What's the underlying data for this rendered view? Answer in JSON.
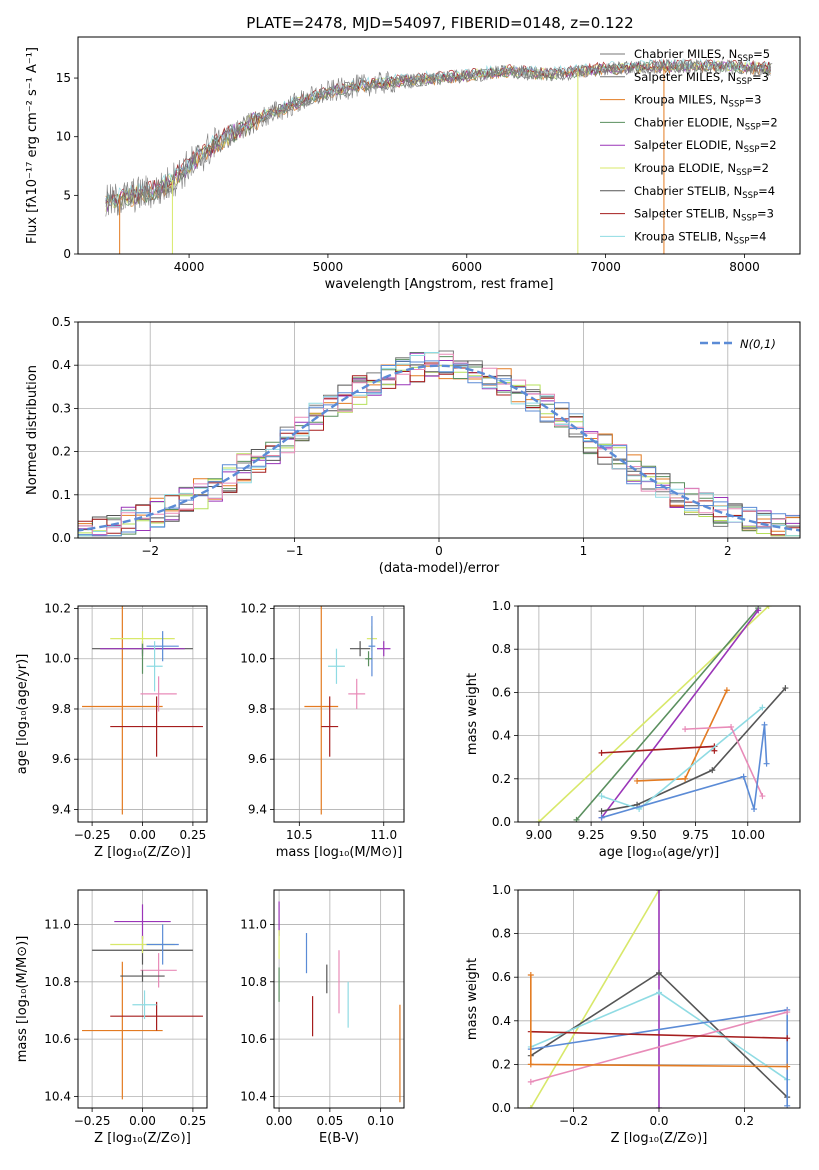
{
  "figure_title": "PLATE=2478, MJD=54097, FIBERID=0148, z=0.122",
  "chart_data": [
    {
      "id": "spectrum",
      "type": "line",
      "xlabel": "wavelength [Angstrom, rest frame]",
      "ylabel": "Flux [fλ10⁻¹⁷ erg cm⁻² s⁻¹ A⁻¹]",
      "xlim": [
        3200,
        8400
      ],
      "ylim": [
        0,
        18.5
      ],
      "xticks": [
        4000,
        5000,
        6000,
        7000,
        8000
      ],
      "yticks": [
        0,
        5,
        10,
        15
      ],
      "grid": false,
      "legend_position": "top-right",
      "legend": [
        {
          "name": "Chabrier MILES, N_SSP=5",
          "color": "#777777"
        },
        {
          "name": "Salpeter MILES, N_SSP=3",
          "color": "#777777"
        },
        {
          "name": "Kroupa MILES, N_SSP=3",
          "color": "#e37b22"
        },
        {
          "name": "Chabrier ELODIE, N_SSP=2",
          "color": "#5a8f5e"
        },
        {
          "name": "Salpeter ELODIE, N_SSP=2",
          "color": "#9a35b8"
        },
        {
          "name": "Kroupa ELODIE, N_SSP=2",
          "color": "#d8e86a"
        },
        {
          "name": "Chabrier STELIB, N_SSP=4",
          "color": "#555555"
        },
        {
          "name": "Salpeter STELIB, N_SSP=3",
          "color": "#a51d1d"
        },
        {
          "name": "Kroupa STELIB, N_SSP=4",
          "color": "#8fdbe3"
        }
      ],
      "continuum": {
        "x": [
          3400,
          3600,
          3800,
          4000,
          4200,
          4500,
          4800,
          5000,
          5200,
          5500,
          5800,
          6000,
          6300,
          6600,
          7000,
          7400,
          7800,
          8200
        ],
        "y": [
          4.3,
          5.0,
          5.5,
          7.5,
          9.5,
          11.5,
          13.0,
          13.8,
          14.3,
          14.7,
          15.0,
          15.2,
          15.6,
          15.3,
          15.8,
          16.0,
          16.0,
          15.8
        ]
      },
      "vertical_drops": [
        {
          "x": 3500,
          "color": "#e37b22"
        },
        {
          "x": 3880,
          "color": "#d8e86a"
        },
        {
          "x": 6800,
          "color": "#d8e86a"
        },
        {
          "x": 7420,
          "color": "#e37b22"
        }
      ]
    },
    {
      "id": "residual-histogram",
      "type": "step",
      "xlabel": "(data-model)/error",
      "ylabel": "Normed distribution",
      "xlim": [
        -2.5,
        2.5
      ],
      "ylim": [
        0,
        0.5
      ],
      "xticks": [
        -2,
        -1,
        0,
        1,
        2
      ],
      "yticks": [
        0.0,
        0.1,
        0.2,
        0.3,
        0.4,
        0.5
      ],
      "grid": true,
      "legend_position": "top-right",
      "gaussian_label": "N(0,1)",
      "gaussian_color": "#5b8bd6",
      "series_colors": [
        "#7a7a7a",
        "#e37b22",
        "#5a8f5e",
        "#9a35b8",
        "#b6e05a",
        "#555555",
        "#a51d1d",
        "#8fdbe3",
        "#e88bb8",
        "#5b8bd6"
      ]
    },
    {
      "id": "age-vs-Z",
      "type": "scatter",
      "xlabel": "Z [log₁₀(Z/Z⊙)]",
      "ylabel": "age [log₁₀(age/yr)]",
      "xlim": [
        -0.32,
        0.32
      ],
      "ylim": [
        9.35,
        10.21
      ],
      "xticks": [
        -0.25,
        0.0,
        0.25
      ],
      "yticks": [
        9.4,
        9.6,
        9.8,
        10.0,
        10.2
      ],
      "grid": true,
      "points": [
        {
          "x": -0.1,
          "y": 9.81,
          "xerr": 0.2,
          "yerr": 0.43,
          "color": "#e37b22"
        },
        {
          "x": 0.07,
          "y": 9.73,
          "xerr": 0.23,
          "yerr": 0.12,
          "color": "#a51d1d"
        },
        {
          "x": 0.0,
          "y": 10.04,
          "xerr": 0.25,
          "yerr": 0.03,
          "color": "#555555"
        },
        {
          "x": 0.0,
          "y": 10.04,
          "xerr": 0.21,
          "yerr": 0.02,
          "color": "#9a35b8"
        },
        {
          "x": 0.0,
          "y": 10.08,
          "xerr": 0.16,
          "yerr": 0.03,
          "color": "#d8e86a"
        },
        {
          "x": 0.1,
          "y": 10.05,
          "xerr": 0.08,
          "yerr": 0.06,
          "color": "#5b8bd6"
        },
        {
          "x": 0.06,
          "y": 9.97,
          "xerr": 0.04,
          "yerr": 0.1,
          "color": "#8fdbe3"
        },
        {
          "x": 0.08,
          "y": 9.86,
          "xerr": 0.09,
          "yerr": 0.07,
          "color": "#e88bb8"
        },
        {
          "x": 0.0,
          "y": 10.0,
          "xerr": 0.0,
          "yerr": 0.06,
          "color": "#5a8f5e"
        }
      ]
    },
    {
      "id": "age-vs-mass",
      "type": "scatter",
      "xlabel": "mass [log₁₀(M/M⊙)]",
      "ylabel": "",
      "xlim": [
        10.35,
        11.12
      ],
      "ylim": [
        9.35,
        10.21
      ],
      "xticks": [
        10.5,
        11.0
      ],
      "yticks": [
        9.4,
        9.6,
        9.8,
        10.0,
        10.2
      ],
      "grid": true,
      "points": [
        {
          "x": 10.63,
          "y": 9.81,
          "xerr": 0.1,
          "yerr": 0.43,
          "color": "#e37b22"
        },
        {
          "x": 10.68,
          "y": 9.73,
          "xerr": 0.05,
          "yerr": 0.12,
          "color": "#a51d1d"
        },
        {
          "x": 10.86,
          "y": 10.04,
          "xerr": 0.06,
          "yerr": 0.03,
          "color": "#555555"
        },
        {
          "x": 11.0,
          "y": 10.04,
          "xerr": 0.04,
          "yerr": 0.03,
          "color": "#9a35b8"
        },
        {
          "x": 10.93,
          "y": 10.08,
          "xerr": 0.03,
          "yerr": 0.05,
          "color": "#d8e86a"
        },
        {
          "x": 10.93,
          "y": 10.05,
          "xerr": 0.02,
          "yerr": 0.12,
          "color": "#5b8bd6"
        },
        {
          "x": 10.72,
          "y": 9.97,
          "xerr": 0.05,
          "yerr": 0.07,
          "color": "#8fdbe3"
        },
        {
          "x": 10.84,
          "y": 9.86,
          "xerr": 0.05,
          "yerr": 0.06,
          "color": "#e88bb8"
        },
        {
          "x": 10.91,
          "y": 10.0,
          "xerr": 0.02,
          "yerr": 0.03,
          "color": "#5a8f5e"
        }
      ]
    },
    {
      "id": "weight-vs-age",
      "type": "line",
      "xlabel": "age [log₁₀(age/yr)]",
      "ylabel": "mass weight",
      "xlim": [
        8.9,
        10.25
      ],
      "ylim": [
        0,
        1.0
      ],
      "xticks": [
        9.0,
        9.25,
        9.5,
        9.75,
        10.0
      ],
      "yticks": [
        0.0,
        0.2,
        0.4,
        0.6,
        0.8,
        1.0
      ],
      "grid": true,
      "series": [
        {
          "color": "#d8e86a",
          "x": [
            9.0,
            10.1
          ],
          "y": [
            0.0,
            1.0
          ]
        },
        {
          "color": "#5a8f5e",
          "x": [
            9.18,
            10.05
          ],
          "y": [
            0.01,
            0.99
          ]
        },
        {
          "color": "#9a35b8",
          "x": [
            9.3,
            10.05
          ],
          "y": [
            0.02,
            0.98
          ]
        },
        {
          "color": "#555555",
          "x": [
            9.3,
            9.47,
            9.83,
            10.18
          ],
          "y": [
            0.05,
            0.08,
            0.24,
            0.62
          ]
        },
        {
          "color": "#e37b22",
          "x": [
            9.47,
            9.7,
            9.9
          ],
          "y": [
            0.19,
            0.2,
            0.61
          ]
        },
        {
          "color": "#a51d1d",
          "x": [
            9.3,
            9.84,
            9.84
          ],
          "y": [
            0.32,
            0.35,
            0.33
          ]
        },
        {
          "color": "#8fdbe3",
          "x": [
            9.3,
            9.48,
            10.07
          ],
          "y": [
            0.12,
            0.06,
            0.53
          ]
        },
        {
          "color": "#e88bb8",
          "x": [
            9.7,
            9.92,
            10.07
          ],
          "y": [
            0.43,
            0.44,
            0.12
          ]
        },
        {
          "color": "#5b8bd6",
          "x": [
            9.3,
            9.98,
            10.03,
            10.08,
            10.09
          ],
          "y": [
            0.02,
            0.21,
            0.06,
            0.45,
            0.27
          ]
        }
      ]
    },
    {
      "id": "mass-vs-Z",
      "type": "scatter",
      "xlabel": "Z [log₁₀(Z/Z⊙)]",
      "ylabel": "mass [log₁₀(M/M⊙)]",
      "xlim": [
        -0.32,
        0.32
      ],
      "ylim": [
        10.36,
        11.12
      ],
      "xticks": [
        -0.25,
        0.0,
        0.25
      ],
      "yticks": [
        10.4,
        10.6,
        10.8,
        11.0
      ],
      "grid": true,
      "points": [
        {
          "x": -0.1,
          "y": 10.63,
          "xerr": 0.2,
          "yerr": 0.24,
          "color": "#e37b22"
        },
        {
          "x": 0.07,
          "y": 10.68,
          "xerr": 0.23,
          "yerr": 0.05,
          "color": "#a51d1d"
        },
        {
          "x": 0.0,
          "y": 10.91,
          "xerr": 0.25,
          "yerr": 0.05,
          "color": "#555555"
        },
        {
          "x": 0.0,
          "y": 11.01,
          "xerr": 0.14,
          "yerr": 0.06,
          "color": "#9a35b8"
        },
        {
          "x": 0.0,
          "y": 10.93,
          "xerr": 0.16,
          "yerr": 0.03,
          "color": "#d8e86a"
        },
        {
          "x": 0.1,
          "y": 10.93,
          "xerr": 0.08,
          "yerr": 0.07,
          "color": "#5b8bd6"
        },
        {
          "x": 0.01,
          "y": 10.72,
          "xerr": 0.06,
          "yerr": 0.05,
          "color": "#8fdbe3"
        },
        {
          "x": 0.08,
          "y": 10.84,
          "xerr": 0.09,
          "yerr": 0.06,
          "color": "#e88bb8"
        },
        {
          "x": 0.0,
          "y": 10.82,
          "xerr": 0.11,
          "yerr": 0.02,
          "color": "#555555"
        }
      ]
    },
    {
      "id": "mass-vs-EBV",
      "type": "errorbar",
      "xlabel": "E(B-V)",
      "ylabel": "",
      "xlim": [
        -0.005,
        0.123
      ],
      "ylim": [
        10.36,
        11.12
      ],
      "xticks": [
        0.0,
        0.05,
        0.1
      ],
      "yticks": [
        10.4,
        10.6,
        10.8,
        11.0
      ],
      "grid": true,
      "points": [
        {
          "x": 0.0,
          "y": 11.02,
          "yerr": 0.06,
          "color": "#9a35b8"
        },
        {
          "x": 0.0,
          "y": 10.93,
          "yerr": 0.05,
          "color": "#d8e86a"
        },
        {
          "x": 0.0,
          "y": 10.79,
          "yerr": 0.06,
          "color": "#5a8f5e"
        },
        {
          "x": 0.027,
          "y": 10.9,
          "yerr": 0.07,
          "color": "#5b8bd6"
        },
        {
          "x": 0.033,
          "y": 10.68,
          "yerr": 0.07,
          "color": "#a51d1d"
        },
        {
          "x": 0.047,
          "y": 10.81,
          "yerr": 0.05,
          "color": "#555555"
        },
        {
          "x": 0.059,
          "y": 10.8,
          "yerr": 0.11,
          "color": "#e88bb8"
        },
        {
          "x": 0.068,
          "y": 10.72,
          "yerr": 0.08,
          "color": "#8fdbe3"
        },
        {
          "x": 0.119,
          "y": 10.55,
          "yerr": 0.17,
          "color": "#e37b22"
        }
      ]
    },
    {
      "id": "weight-vs-Z",
      "type": "line",
      "xlabel": "Z [log₁₀(Z/Z⊙)]",
      "ylabel": "mass weight",
      "xlim": [
        -0.33,
        0.33
      ],
      "ylim": [
        0,
        1.0
      ],
      "xticks": [
        -0.2,
        0.0,
        0.2
      ],
      "yticks": [
        0.0,
        0.2,
        0.4,
        0.6,
        0.8,
        1.0
      ],
      "grid": true,
      "series": [
        {
          "color": "#d8e86a",
          "x": [
            -0.3,
            0.0
          ],
          "y": [
            0.0,
            1.0
          ]
        },
        {
          "color": "#9a35b8",
          "x": [
            0.0,
            0.0
          ],
          "y": [
            0.0,
            1.0
          ]
        },
        {
          "color": "#555555",
          "x": [
            -0.3,
            0.0,
            0.3
          ],
          "y": [
            0.24,
            0.62,
            0.05
          ]
        },
        {
          "color": "#8fdbe3",
          "x": [
            -0.3,
            0.0,
            0.3
          ],
          "y": [
            0.28,
            0.53,
            0.13
          ]
        },
        {
          "color": "#5b8bd6",
          "x": [
            -0.3,
            0.3,
            0.3
          ],
          "y": [
            0.27,
            0.45,
            0.01
          ]
        },
        {
          "color": "#e88bb8",
          "x": [
            -0.3,
            0.3
          ],
          "y": [
            0.12,
            0.44
          ]
        },
        {
          "color": "#a51d1d",
          "x": [
            -0.3,
            0.3
          ],
          "y": [
            0.35,
            0.32
          ]
        },
        {
          "color": "#e37b22",
          "x": [
            -0.3,
            -0.3,
            0.3
          ],
          "y": [
            0.61,
            0.2,
            0.19
          ]
        }
      ]
    }
  ]
}
